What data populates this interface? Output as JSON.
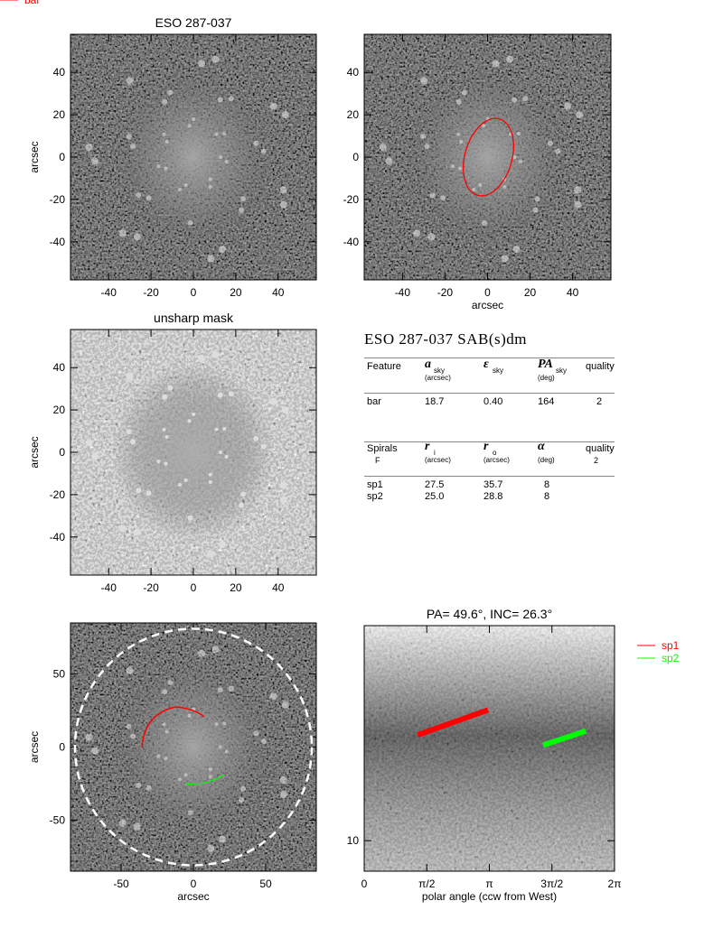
{
  "chart_data": [
    {
      "type": "image",
      "title": "ESO 287-037",
      "ylabel": "arcsec",
      "xlim": [
        -58,
        58
      ],
      "ylim": [
        -58,
        58
      ],
      "xticks": [
        -40,
        -20,
        0,
        20,
        40
      ],
      "yticks": [
        -40,
        -20,
        0,
        20,
        40
      ]
    },
    {
      "type": "image",
      "xlabel": "arcsec",
      "xlim": [
        -58,
        58
      ],
      "ylim": [
        -58,
        58
      ],
      "xticks": [
        -40,
        -20,
        0,
        20,
        40
      ],
      "yticks": [
        -40,
        -20,
        0,
        20,
        40
      ],
      "series": [
        {
          "name": "bar",
          "color": "#ff0000"
        }
      ]
    },
    {
      "type": "image",
      "title": "unsharp mask",
      "ylabel": "arcsec",
      "xlim": [
        -58,
        58
      ],
      "ylim": [
        -58,
        58
      ],
      "xticks": [
        -40,
        -20,
        0,
        20,
        40
      ],
      "yticks": [
        -40,
        -20,
        0,
        20,
        40
      ]
    },
    {
      "type": "image",
      "xlabel": "arcsec",
      "ylabel": "arcsec",
      "xlim": [
        -85,
        85
      ],
      "ylim": [
        -85,
        85
      ],
      "xticks": [
        -50,
        0,
        50
      ],
      "yticks": [
        -50,
        0,
        50
      ],
      "series": [
        {
          "name": "sp1",
          "color": "#ff0000"
        },
        {
          "name": "sp2",
          "color": "#00ff00"
        }
      ]
    },
    {
      "type": "line",
      "title": "PA= 49.6°, INC= 26.3°",
      "xlabel": "polar angle (ccw from West)",
      "xlim": [
        0,
        6.2832
      ],
      "xticks": [
        0,
        {
          "value": 1.5708,
          "label": "π/2"
        },
        {
          "value": 3.1416,
          "label": "π"
        },
        {
          "value": 4.7124,
          "label": "3π/2"
        },
        {
          "value": 6.2832,
          "label": "2π"
        }
      ],
      "ylim": [
        9,
        21
      ],
      "yscale": "log",
      "yticks": [
        10
      ],
      "series": [
        {
          "name": "sp1",
          "color": "#ff0000",
          "x": [
            1.34,
            3.11
          ],
          "values": [
            14.4,
            15.7
          ]
        },
        {
          "name": "sp2",
          "color": "#00ff00",
          "x": [
            4.49,
            5.56
          ],
          "values": [
            13.9,
            14.6
          ]
        }
      ]
    }
  ],
  "table": {
    "title": "ESO 287-037  SAB(s)dm",
    "bar_header": [
      {
        "text": "Feature"
      },
      {
        "symbol": "a",
        "sub": "sky",
        "unit": "(arcsec)"
      },
      {
        "symbol": "ε",
        "sub": "sky"
      },
      {
        "symbol": "PA",
        "sub": "sky",
        "unit": "(deg)"
      },
      {
        "text": "quality"
      }
    ],
    "bar_rows": [
      [
        "bar",
        "18.7",
        "0.40",
        "164",
        "2"
      ]
    ],
    "spiral_header": [
      {
        "text": "Spirals",
        "sub": "F"
      },
      {
        "symbol": "r",
        "sub": "i",
        "unit": "(arcsec)"
      },
      {
        "symbol": "r",
        "sub": "o",
        "unit": "(arcsec)"
      },
      {
        "symbol": "α",
        "unit": "(deg)"
      },
      {
        "text": "quality",
        "sub": "2"
      }
    ],
    "spiral_rows": [
      [
        "sp1",
        "27.5",
        "35.7",
        "8"
      ],
      [
        "sp2",
        "25.0",
        "28.8",
        "8"
      ]
    ]
  }
}
